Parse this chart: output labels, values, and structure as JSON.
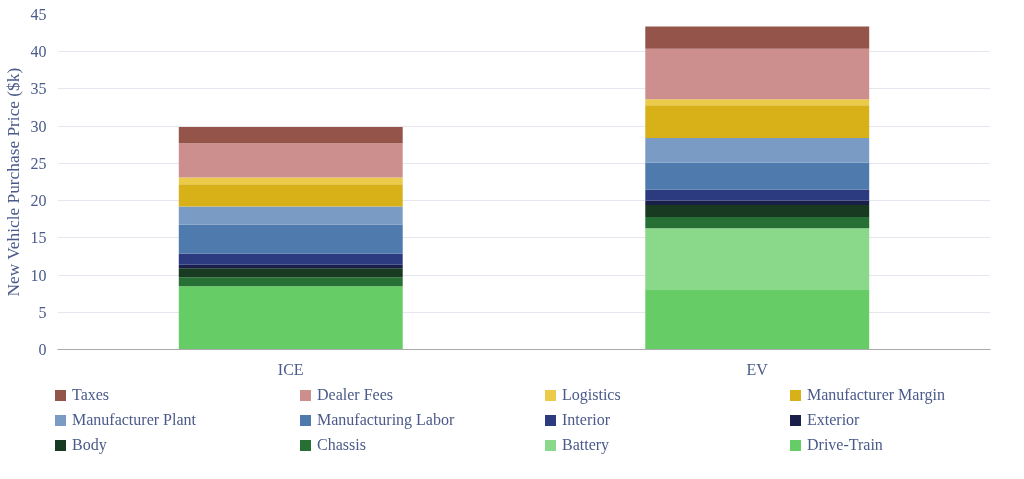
{
  "chart_data": {
    "type": "bar",
    "stacked": true,
    "ylabel": "New Vehicle Purchase Price ($k)",
    "categories": [
      "ICE",
      "EV"
    ],
    "ylim": [
      0,
      45
    ],
    "yticks": [
      0,
      5,
      10,
      15,
      20,
      25,
      30,
      35,
      40,
      45
    ],
    "grid": "y",
    "legend": "bottom",
    "series": [
      {
        "name": "Drive-Train",
        "color": "#66cc66",
        "values": [
          8.5,
          8.1
        ]
      },
      {
        "name": "Battery",
        "color": "#8ad98a",
        "values": [
          0,
          8.2
        ]
      },
      {
        "name": "Chassis",
        "color": "#277035",
        "values": [
          1.2,
          1.5
        ]
      },
      {
        "name": "Body",
        "color": "#183a20",
        "values": [
          1.2,
          1.6
        ]
      },
      {
        "name": "Exterior",
        "color": "#1a1f4a",
        "values": [
          0.5,
          0.6
        ]
      },
      {
        "name": "Interior",
        "color": "#2c3a80",
        "values": [
          1.5,
          1.5
        ]
      },
      {
        "name": "Manufacturing Labor",
        "color": "#4e7aae",
        "values": [
          3.9,
          3.6
        ]
      },
      {
        "name": "Manufacturer Plant",
        "color": "#7a9cc4",
        "values": [
          2.4,
          3.3
        ]
      },
      {
        "name": "Manufacturer Margin",
        "color": "#d8b018",
        "values": [
          3.0,
          4.4
        ]
      },
      {
        "name": "Logistics",
        "color": "#ecca4a",
        "values": [
          0.9,
          0.8
        ]
      },
      {
        "name": "Dealer Fees",
        "color": "#cc8f8d",
        "values": [
          4.6,
          6.8
        ]
      },
      {
        "name": "Taxes",
        "color": "#94544a",
        "values": [
          2.2,
          3.0
        ]
      }
    ]
  }
}
